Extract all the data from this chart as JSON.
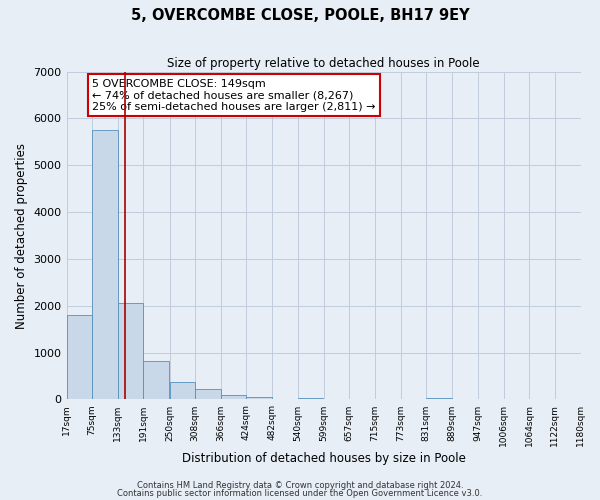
{
  "title": "5, OVERCOMBE CLOSE, POOLE, BH17 9EY",
  "subtitle": "Size of property relative to detached houses in Poole",
  "xlabel": "Distribution of detached houses by size in Poole",
  "ylabel": "Number of detached properties",
  "bar_values": [
    1800,
    5750,
    2050,
    820,
    370,
    230,
    100,
    50,
    10,
    40,
    0,
    0,
    0,
    0,
    30,
    0,
    0,
    0,
    0,
    0
  ],
  "bin_edges": [
    17,
    75,
    133,
    191,
    250,
    308,
    366,
    424,
    482,
    540,
    599,
    657,
    715,
    773,
    831,
    889,
    947,
    1006,
    1064,
    1122,
    1180
  ],
  "tick_labels": [
    "17sqm",
    "75sqm",
    "133sqm",
    "191sqm",
    "250sqm",
    "308sqm",
    "366sqm",
    "424sqm",
    "482sqm",
    "540sqm",
    "599sqm",
    "657sqm",
    "715sqm",
    "773sqm",
    "831sqm",
    "889sqm",
    "947sqm",
    "1006sqm",
    "1064sqm",
    "1122sqm",
    "1180sqm"
  ],
  "bar_color": "#c8d8e8",
  "bar_edge_color": "#5590bb",
  "red_line_x": 149,
  "ylim": [
    0,
    7000
  ],
  "yticks": [
    0,
    1000,
    2000,
    3000,
    4000,
    5000,
    6000,
    7000
  ],
  "annotation_text": "5 OVERCOMBE CLOSE: 149sqm\n← 74% of detached houses are smaller (8,267)\n25% of semi-detached houses are larger (2,811) →",
  "annotation_box_color": "#ffffff",
  "annotation_box_edge_color": "#cc0000",
  "grid_color": "#c0ccdd",
  "bg_color": "#e8eef5",
  "footer1": "Contains HM Land Registry data © Crown copyright and database right 2024.",
  "footer2": "Contains public sector information licensed under the Open Government Licence v3.0."
}
